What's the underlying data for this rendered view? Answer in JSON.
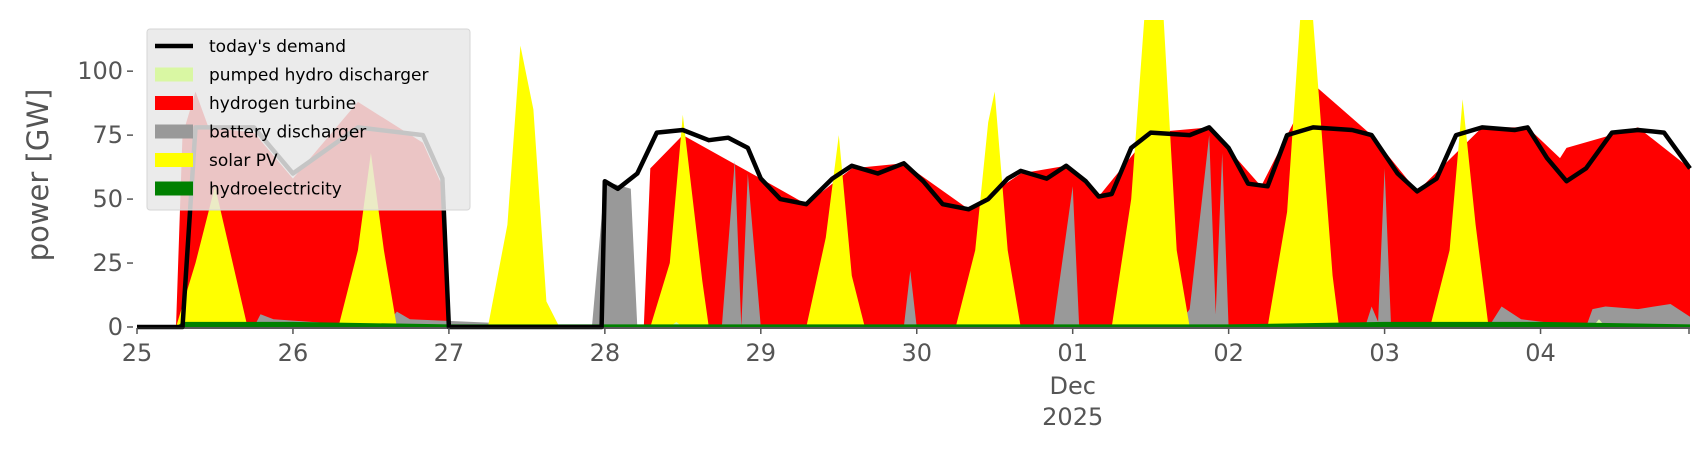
{
  "chart_data": {
    "type": "area",
    "title": "",
    "xlabel": "",
    "ylabel": "power [GW]",
    "x_start": "2025-11-25 00:00",
    "x_end": "2025-12-04 23:00",
    "date_ticks": [
      {
        "date": "2025-11-25",
        "label": "25"
      },
      {
        "date": "2025-11-26",
        "label": "26"
      },
      {
        "date": "2025-11-27",
        "label": "27"
      },
      {
        "date": "2025-11-28",
        "label": "28"
      },
      {
        "date": "2025-11-29",
        "label": "29"
      },
      {
        "date": "2025-11-30",
        "label": "30"
      },
      {
        "date": "2025-12-01",
        "label": "01"
      },
      {
        "date": "2025-12-02",
        "label": "02"
      },
      {
        "date": "2025-12-03",
        "label": "03"
      },
      {
        "date": "2025-12-04",
        "label": "04"
      }
    ],
    "x_sublabels": [
      "Dec",
      "2025"
    ],
    "yticks": [
      0,
      25,
      50,
      75,
      100
    ],
    "ylim": [
      0,
      120
    ],
    "grid": false,
    "legend_position": "top-left",
    "legend": [
      {
        "name": "today's demand",
        "color": "#000000",
        "kind": "line"
      },
      {
        "name": "pumped hydro discharger",
        "color": "#d9f7a3",
        "kind": "area"
      },
      {
        "name": "hydrogen turbine",
        "color": "#ff0000",
        "kind": "area"
      },
      {
        "name": "battery discharger",
        "color": "#999999",
        "kind": "area"
      },
      {
        "name": "solar PV",
        "color": "#ffff00",
        "kind": "area"
      },
      {
        "name": "hydroelectricity",
        "color": "#008000",
        "kind": "area"
      }
    ],
    "series": [
      {
        "name": "today's demand",
        "type": "line",
        "color": "#000000",
        "points": [
          [
            "2025-11-25 00:00",
            0
          ],
          [
            "2025-11-25 06:00",
            0
          ],
          [
            "2025-11-25 07:00",
            0
          ],
          [
            "2025-11-25 09:00",
            78
          ],
          [
            "2025-11-25 18:00",
            78
          ],
          [
            "2025-11-26 00:00",
            60
          ],
          [
            "2025-11-26 10:00",
            78
          ],
          [
            "2025-11-26 20:00",
            75
          ],
          [
            "2025-11-26 23:00",
            58
          ],
          [
            "2025-11-27 00:00",
            0
          ],
          [
            "2025-11-27 23:00",
            0
          ],
          [
            "2025-11-27 23:30",
            0
          ],
          [
            "2025-11-28 00:00",
            57
          ],
          [
            "2025-11-28 02:00",
            54
          ],
          [
            "2025-11-28 05:00",
            60
          ],
          [
            "2025-11-28 08:00",
            76
          ],
          [
            "2025-11-28 12:00",
            77
          ],
          [
            "2025-11-28 16:00",
            73
          ],
          [
            "2025-11-28 19:00",
            74
          ],
          [
            "2025-11-28 22:00",
            70
          ],
          [
            "2025-11-29 00:00",
            58
          ],
          [
            "2025-11-29 03:00",
            50
          ],
          [
            "2025-11-29 07:00",
            48
          ],
          [
            "2025-11-29 11:00",
            58
          ],
          [
            "2025-11-29 14:00",
            63
          ],
          [
            "2025-11-29 18:00",
            60
          ],
          [
            "2025-11-29 22:00",
            64
          ],
          [
            "2025-11-30 01:00",
            57
          ],
          [
            "2025-11-30 04:00",
            48
          ],
          [
            "2025-11-30 08:00",
            46
          ],
          [
            "2025-11-30 11:00",
            50
          ],
          [
            "2025-11-30 14:00",
            58
          ],
          [
            "2025-11-30 16:00",
            61
          ],
          [
            "2025-11-30 20:00",
            58
          ],
          [
            "2025-11-30 23:00",
            63
          ],
          [
            "2025-12-01 02:00",
            57
          ],
          [
            "2025-12-01 04:00",
            51
          ],
          [
            "2025-12-01 06:00",
            52
          ],
          [
            "2025-12-01 09:00",
            70
          ],
          [
            "2025-12-01 12:00",
            76
          ],
          [
            "2025-12-01 18:00",
            75
          ],
          [
            "2025-12-01 21:00",
            78
          ],
          [
            "2025-12-02 00:00",
            70
          ],
          [
            "2025-12-02 03:00",
            56
          ],
          [
            "2025-12-02 06:00",
            55
          ],
          [
            "2025-12-02 09:00",
            75
          ],
          [
            "2025-12-02 13:00",
            78
          ],
          [
            "2025-12-02 19:00",
            77
          ],
          [
            "2025-12-02 22:00",
            75
          ],
          [
            "2025-12-03 02:00",
            60
          ],
          [
            "2025-12-03 05:00",
            53
          ],
          [
            "2025-12-03 08:00",
            58
          ],
          [
            "2025-12-03 11:00",
            75
          ],
          [
            "2025-12-03 15:00",
            78
          ],
          [
            "2025-12-03 20:00",
            77
          ],
          [
            "2025-12-03 22:00",
            78
          ],
          [
            "2025-12-04 01:00",
            66
          ],
          [
            "2025-12-04 04:00",
            57
          ],
          [
            "2025-12-04 07:00",
            62
          ],
          [
            "2025-12-04 11:00",
            76
          ],
          [
            "2025-12-04 15:00",
            77
          ],
          [
            "2025-12-04 19:00",
            76
          ],
          [
            "2025-12-04 23:00",
            62
          ]
        ]
      },
      {
        "name": "hydrogen turbine",
        "type": "area",
        "color": "#ff0000",
        "points": [
          [
            "2025-11-25 06:00",
            0
          ],
          [
            "2025-11-25 07:00",
            75
          ],
          [
            "2025-11-25 09:00",
            92
          ],
          [
            "2025-11-25 11:00",
            78
          ],
          [
            "2025-11-25 18:00",
            76
          ],
          [
            "2025-11-26 00:00",
            58
          ],
          [
            "2025-11-26 10:00",
            88
          ],
          [
            "2025-11-26 20:00",
            72
          ],
          [
            "2025-11-26 23:00",
            55
          ],
          [
            "2025-11-27 00:00",
            0
          ],
          [
            "2025-11-28 06:00",
            0
          ],
          [
            "2025-11-28 07:00",
            62
          ],
          [
            "2025-11-28 12:00",
            75
          ],
          [
            "2025-11-29 00:00",
            58
          ],
          [
            "2025-11-29 07:00",
            48
          ],
          [
            "2025-11-29 14:00",
            62
          ],
          [
            "2025-11-29 22:00",
            64
          ],
          [
            "2025-11-30 08:00",
            46
          ],
          [
            "2025-11-30 16:00",
            60
          ],
          [
            "2025-11-30 23:00",
            63
          ],
          [
            "2025-12-01 04:00",
            51
          ],
          [
            "2025-12-01 12:00",
            76
          ],
          [
            "2025-12-01 21:00",
            78
          ],
          [
            "2025-12-02 05:00",
            55
          ],
          [
            "2025-12-02 13:00",
            95
          ],
          [
            "2025-12-02 22:00",
            75
          ],
          [
            "2025-12-03 05:00",
            53
          ],
          [
            "2025-12-03 15:00",
            78
          ],
          [
            "2025-12-03 22:00",
            78
          ],
          [
            "2025-12-04 03:00",
            66
          ],
          [
            "2025-12-04 04:00",
            70
          ],
          [
            "2025-12-04 15:00",
            78
          ],
          [
            "2025-12-04 23:00",
            62
          ]
        ]
      },
      {
        "name": "battery discharger",
        "type": "area",
        "color": "#999999",
        "points": [
          [
            "2025-11-25 18:00",
            0
          ],
          [
            "2025-11-25 19:00",
            5
          ],
          [
            "2025-11-25 21:00",
            3
          ],
          [
            "2025-11-26 14:00",
            0
          ],
          [
            "2025-11-26 16:00",
            6
          ],
          [
            "2025-11-26 18:00",
            3
          ],
          [
            "2025-11-27 22:00",
            0
          ],
          [
            "2025-11-28 00:00",
            57
          ],
          [
            "2025-11-28 04:00",
            54
          ],
          [
            "2025-11-28 05:00",
            0
          ],
          [
            "2025-11-28 18:00",
            0
          ],
          [
            "2025-11-28 20:00",
            65
          ],
          [
            "2025-11-28 21:00",
            0
          ],
          [
            "2025-11-28 22:00",
            60
          ],
          [
            "2025-11-29 00:00",
            0
          ],
          [
            "2025-11-29 22:00",
            0
          ],
          [
            "2025-11-29 23:00",
            22
          ],
          [
            "2025-11-30 00:00",
            0
          ],
          [
            "2025-11-30 21:00",
            0
          ],
          [
            "2025-12-01 00:00",
            55
          ],
          [
            "2025-12-01 01:00",
            0
          ],
          [
            "2025-12-01 16:00",
            0
          ],
          [
            "2025-12-01 18:00",
            7
          ],
          [
            "2025-12-01 21:00",
            75
          ],
          [
            "2025-12-01 22:00",
            5
          ],
          [
            "2025-12-01 23:00",
            68
          ],
          [
            "2025-12-02 00:00",
            0
          ],
          [
            "2025-12-02 21:00",
            0
          ],
          [
            "2025-12-02 22:00",
            8
          ],
          [
            "2025-12-02 23:00",
            2
          ],
          [
            "2025-12-03 00:00",
            62
          ],
          [
            "2025-12-03 01:00",
            0
          ],
          [
            "2025-12-03 16:00",
            0
          ],
          [
            "2025-12-03 18:00",
            8
          ],
          [
            "2025-12-03 21:00",
            3
          ],
          [
            "2025-12-04 07:00",
            0
          ],
          [
            "2025-12-04 08:00",
            7
          ],
          [
            "2025-12-04 10:00",
            8
          ],
          [
            "2025-12-04 15:00",
            7
          ],
          [
            "2025-12-04 20:00",
            9
          ],
          [
            "2025-12-04 23:00",
            4
          ]
        ]
      },
      {
        "name": "solar PV",
        "type": "area",
        "color": "#ffff00",
        "points": [
          [
            "2025-11-25 06:00",
            0
          ],
          [
            "2025-11-25 09:00",
            25
          ],
          [
            "2025-11-25 12:00",
            55
          ],
          [
            "2025-11-25 15:00",
            22
          ],
          [
            "2025-11-25 17:00",
            0
          ],
          [
            "2025-11-26 07:00",
            0
          ],
          [
            "2025-11-26 10:00",
            30
          ],
          [
            "2025-11-26 12:00",
            68
          ],
          [
            "2025-11-26 14:00",
            30
          ],
          [
            "2025-11-26 16:00",
            0
          ],
          [
            "2025-11-27 06:00",
            0
          ],
          [
            "2025-11-27 09:00",
            40
          ],
          [
            "2025-11-27 11:00",
            110
          ],
          [
            "2025-11-27 13:00",
            85
          ],
          [
            "2025-11-27 15:00",
            10
          ],
          [
            "2025-11-27 17:00",
            0
          ],
          [
            "2025-11-28 07:00",
            0
          ],
          [
            "2025-11-28 10:00",
            25
          ],
          [
            "2025-11-28 12:00",
            83
          ],
          [
            "2025-11-28 15:00",
            18
          ],
          [
            "2025-11-28 16:00",
            0
          ],
          [
            "2025-11-29 07:00",
            0
          ],
          [
            "2025-11-29 10:00",
            35
          ],
          [
            "2025-11-29 12:00",
            75
          ],
          [
            "2025-11-29 14:00",
            20
          ],
          [
            "2025-11-29 16:00",
            0
          ],
          [
            "2025-11-30 06:00",
            0
          ],
          [
            "2025-11-30 09:00",
            30
          ],
          [
            "2025-11-30 11:00",
            80
          ],
          [
            "2025-11-30 12:00",
            92
          ],
          [
            "2025-11-30 14:00",
            30
          ],
          [
            "2025-11-30 16:00",
            0
          ],
          [
            "2025-12-01 06:00",
            0
          ],
          [
            "2025-12-01 09:00",
            50
          ],
          [
            "2025-12-01 11:00",
            120
          ],
          [
            "2025-12-01 14:00",
            120
          ],
          [
            "2025-12-01 16:00",
            30
          ],
          [
            "2025-12-01 18:00",
            0
          ],
          [
            "2025-12-02 06:00",
            0
          ],
          [
            "2025-12-02 09:00",
            45
          ],
          [
            "2025-12-02 11:00",
            120
          ],
          [
            "2025-12-02 13:00",
            120
          ],
          [
            "2025-12-02 16:00",
            20
          ],
          [
            "2025-12-02 17:00",
            0
          ],
          [
            "2025-12-03 07:00",
            0
          ],
          [
            "2025-12-03 10:00",
            30
          ],
          [
            "2025-12-03 12:00",
            89
          ],
          [
            "2025-12-03 14:00",
            40
          ],
          [
            "2025-12-03 16:00",
            0
          ]
        ]
      },
      {
        "name": "pumped hydro discharger",
        "type": "area",
        "color": "#d9f7a3",
        "points": [
          [
            "2025-11-28 10:00",
            0
          ],
          [
            "2025-11-28 11:00",
            2
          ],
          [
            "2025-11-28 12:00",
            0
          ],
          [
            "2025-12-04 08:00",
            0
          ],
          [
            "2025-12-04 09:00",
            3
          ],
          [
            "2025-12-04 10:00",
            0
          ]
        ]
      },
      {
        "name": "hydroelectricity",
        "type": "area",
        "color": "#008000",
        "points": [
          [
            "2025-11-25 00:00",
            0
          ],
          [
            "2025-11-25 06:00",
            0
          ],
          [
            "2025-11-25 07:00",
            2
          ],
          [
            "2025-11-26 00:00",
            2
          ],
          [
            "2025-11-27 00:00",
            1
          ],
          [
            "2025-11-28 00:00",
            1
          ],
          [
            "2025-11-29 00:00",
            1
          ],
          [
            "2025-11-30 00:00",
            1
          ],
          [
            "2025-12-01 00:00",
            1
          ],
          [
            "2025-12-02 00:00",
            1
          ],
          [
            "2025-12-03 00:00",
            2
          ],
          [
            "2025-12-04 00:00",
            2
          ],
          [
            "2025-12-04 23:00",
            1
          ]
        ]
      }
    ]
  }
}
